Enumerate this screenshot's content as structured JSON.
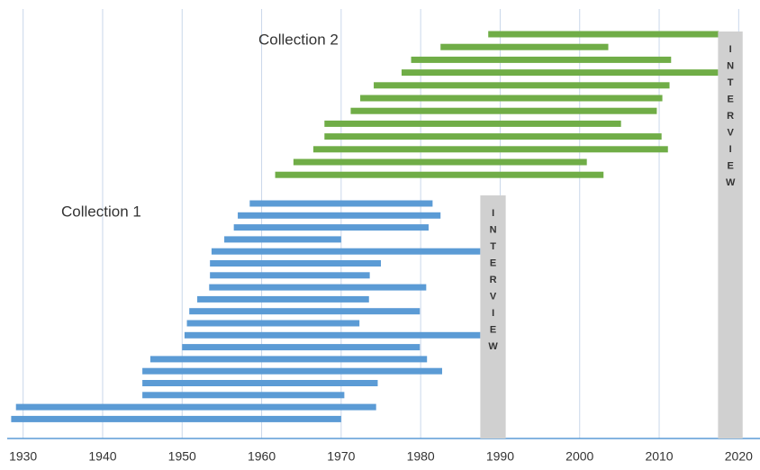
{
  "chart_data": {
    "type": "range-bar",
    "xlim": [
      1928,
      2022
    ],
    "xticks": [
      1930,
      1940,
      1950,
      1960,
      1970,
      1980,
      1990,
      2000,
      2010,
      2020
    ],
    "grid": true,
    "series": [
      {
        "name": "Collection 1",
        "color": "#5b9bd5",
        "start": [
          1958.5,
          1957,
          1956.5,
          1955.3,
          1953.7,
          1953.5,
          1953.5,
          1953.4,
          1951.9,
          1950.9,
          1950.6,
          1950.3,
          1950,
          1946,
          1945,
          1945,
          1945,
          1929.1,
          1928.5
        ],
        "end": [
          1981.5,
          1982.5,
          1981,
          1970,
          1987.5,
          1975,
          1973.6,
          1980.7,
          1973.5,
          1979.9,
          1972.3,
          1987.5,
          1979.9,
          1980.8,
          1982.7,
          1974.6,
          1970.4,
          1974.4,
          1970
        ]
      },
      {
        "name": "Collection 2",
        "color": "#70ad47",
        "start": [
          1988.5,
          1982.5,
          1978.8,
          1977.6,
          1974.1,
          1972.4,
          1971.2,
          1967.9,
          1967.9,
          1966.5,
          1964,
          1961.7
        ],
        "end": [
          2017.5,
          2003.6,
          2011.5,
          2017.4,
          2011.3,
          2010.4,
          2009.7,
          2005.2,
          2010.3,
          2011.1,
          2000.9,
          2003
        ]
      }
    ],
    "interviews": [
      {
        "label": "INTERVIEW",
        "start": 1987.5,
        "end": 1990.7
      },
      {
        "label": "INTERVIEW",
        "start": 2017.4,
        "end": 2020.5
      }
    ]
  }
}
